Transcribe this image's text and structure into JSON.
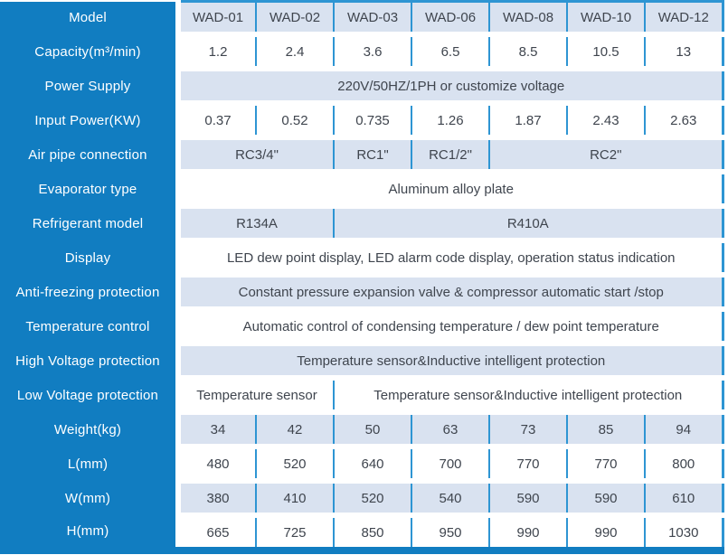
{
  "colors": {
    "header_column_blue": "#117dc1",
    "grid_line_blue": "#2e95d3",
    "alt_row_light_blue": "#d9e2f0",
    "cell_text_gray": "#3f454e",
    "label_text_white": "#ffffff"
  },
  "chart_data": {
    "type": "table",
    "description_visible_content_only": "Specification table, 16 rows; first column is row label, 7 model columns; span = number of model columns a merged cell covers",
    "rows": [
      {
        "label": "Model",
        "cells": [
          {
            "text": "WAD-01",
            "span": 1
          },
          {
            "text": "WAD-02",
            "span": 1
          },
          {
            "text": "WAD-03",
            "span": 1
          },
          {
            "text": "WAD-06",
            "span": 1
          },
          {
            "text": "WAD-08",
            "span": 1
          },
          {
            "text": "WAD-10",
            "span": 1
          },
          {
            "text": "WAD-12",
            "span": 1
          }
        ]
      },
      {
        "label": "Capacity(m³/min)",
        "cells": [
          {
            "text": "1.2",
            "span": 1
          },
          {
            "text": "2.4",
            "span": 1
          },
          {
            "text": "3.6",
            "span": 1
          },
          {
            "text": "6.5",
            "span": 1
          },
          {
            "text": "8.5",
            "span": 1
          },
          {
            "text": "10.5",
            "span": 1
          },
          {
            "text": "13",
            "span": 1
          }
        ]
      },
      {
        "label": "Power Supply",
        "cells": [
          {
            "text": "220V/50HZ/1PH or customize voltage",
            "span": 7
          }
        ]
      },
      {
        "label": "Input Power(KW)",
        "cells": [
          {
            "text": "0.37",
            "span": 1
          },
          {
            "text": "0.52",
            "span": 1
          },
          {
            "text": "0.735",
            "span": 1
          },
          {
            "text": "1.26",
            "span": 1
          },
          {
            "text": "1.87",
            "span": 1
          },
          {
            "text": "2.43",
            "span": 1
          },
          {
            "text": "2.63",
            "span": 1
          }
        ]
      },
      {
        "label": "Air pipe connection",
        "cells": [
          {
            "text": "RC3/4\"",
            "span": 2
          },
          {
            "text": "RC1\"",
            "span": 1
          },
          {
            "text": "RC1/2\"",
            "span": 1
          },
          {
            "text": "RC2\"",
            "span": 3
          }
        ]
      },
      {
        "label": "Evaporator type",
        "cells": [
          {
            "text": "Aluminum alloy plate",
            "span": 7
          }
        ]
      },
      {
        "label": "Refrigerant model",
        "cells": [
          {
            "text": "R134A",
            "span": 2
          },
          {
            "text": "R410A",
            "span": 5
          }
        ]
      },
      {
        "label": "Display",
        "cells": [
          {
            "text": "LED dew point display, LED alarm code display, operation status indication",
            "span": 7
          }
        ]
      },
      {
        "label": "Anti-freezing protection",
        "cells": [
          {
            "text": "Constant pressure expansion valve & compressor automatic start /stop",
            "span": 7
          }
        ]
      },
      {
        "label": "Temperature control",
        "cells": [
          {
            "text": "Automatic control of condensing temperature / dew point temperature",
            "span": 7
          }
        ]
      },
      {
        "label": "High Voltage protection",
        "cells": [
          {
            "text": "Temperature sensor&Inductive intelligent protection",
            "span": 7
          }
        ]
      },
      {
        "label": "Low Voltage protection",
        "cells": [
          {
            "text": "Temperature sensor",
            "span": 2
          },
          {
            "text": "Temperature sensor&Inductive intelligent protection",
            "span": 5
          }
        ]
      },
      {
        "label": "Weight(kg)",
        "cells": [
          {
            "text": "34",
            "span": 1
          },
          {
            "text": "42",
            "span": 1
          },
          {
            "text": "50",
            "span": 1
          },
          {
            "text": "63",
            "span": 1
          },
          {
            "text": "73",
            "span": 1
          },
          {
            "text": "85",
            "span": 1
          },
          {
            "text": "94",
            "span": 1
          }
        ]
      },
      {
        "label": "L(mm)",
        "cells": [
          {
            "text": "480",
            "span": 1
          },
          {
            "text": "520",
            "span": 1
          },
          {
            "text": "640",
            "span": 1
          },
          {
            "text": "700",
            "span": 1
          },
          {
            "text": "770",
            "span": 1
          },
          {
            "text": "770",
            "span": 1
          },
          {
            "text": "800",
            "span": 1
          }
        ]
      },
      {
        "label": "W(mm)",
        "cells": [
          {
            "text": "380",
            "span": 1
          },
          {
            "text": "410",
            "span": 1
          },
          {
            "text": "520",
            "span": 1
          },
          {
            "text": "540",
            "span": 1
          },
          {
            "text": "590",
            "span": 1
          },
          {
            "text": "590",
            "span": 1
          },
          {
            "text": "610",
            "span": 1
          }
        ]
      },
      {
        "label": "H(mm)",
        "cells": [
          {
            "text": "665",
            "span": 1
          },
          {
            "text": "725",
            "span": 1
          },
          {
            "text": "850",
            "span": 1
          },
          {
            "text": "950",
            "span": 1
          },
          {
            "text": "990",
            "span": 1
          },
          {
            "text": "990",
            "span": 1
          },
          {
            "text": "1030",
            "span": 1
          }
        ]
      }
    ]
  }
}
